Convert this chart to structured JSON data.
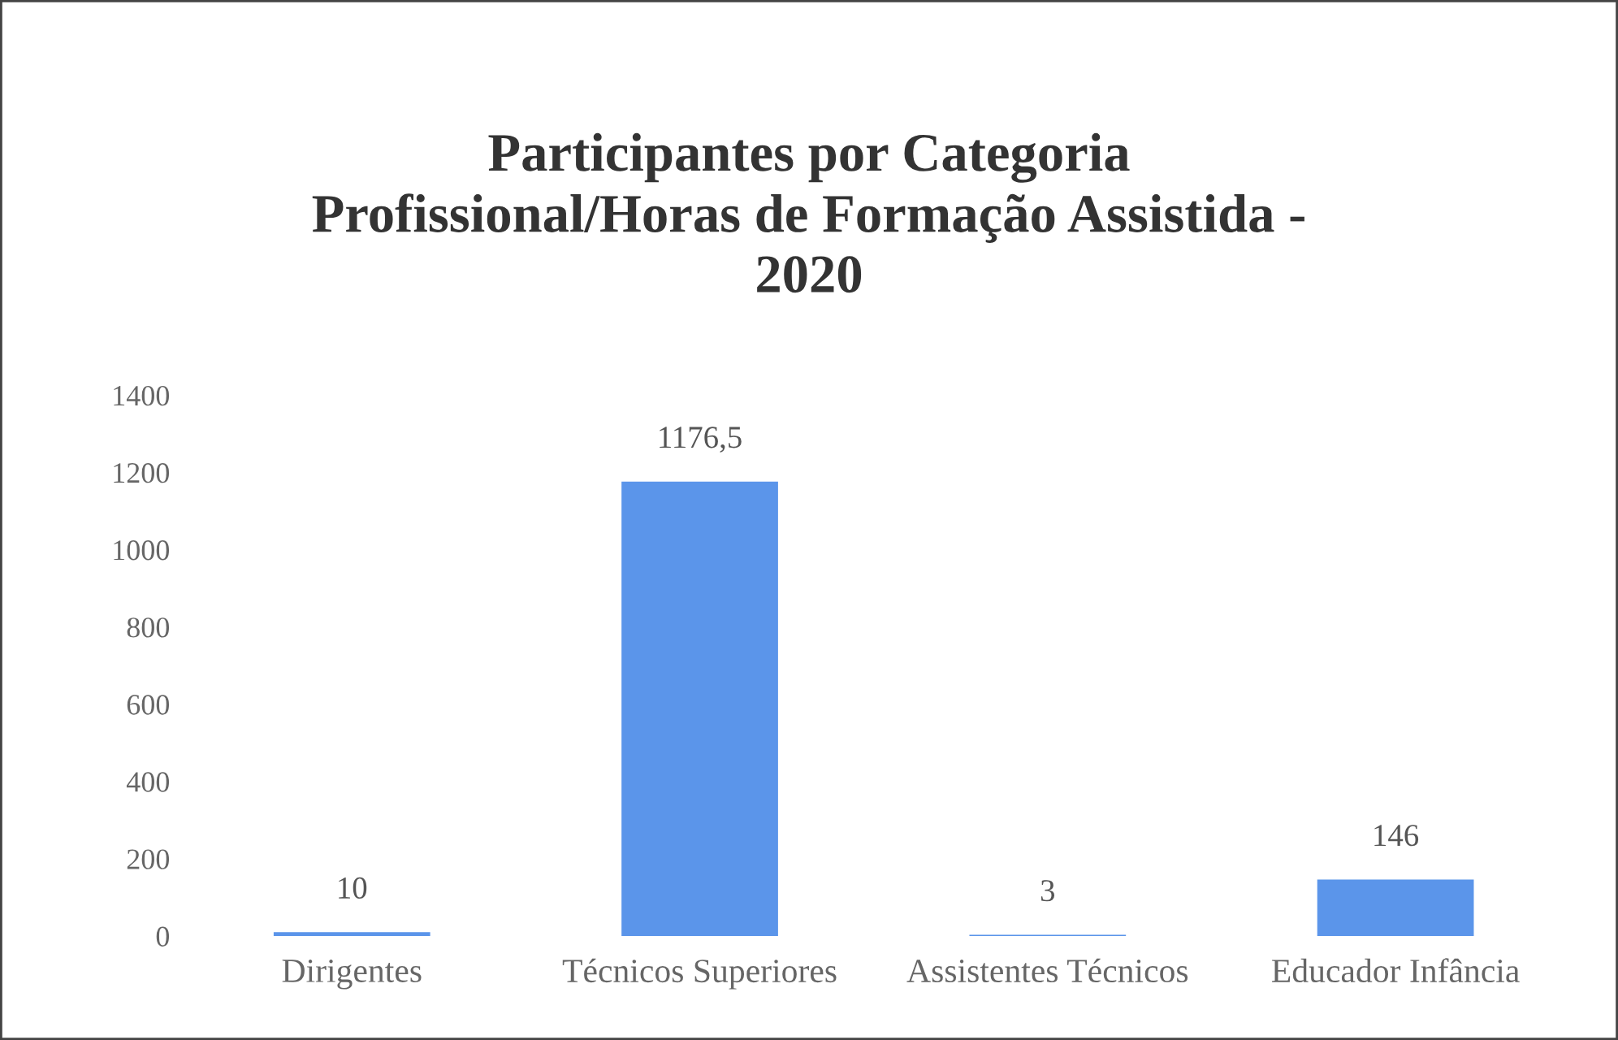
{
  "chart_data": {
    "type": "bar",
    "title": "Participantes por Categoria\nProfissional/Horas de Formação Assistida -\n2020",
    "categories": [
      "Dirigentes",
      "Técnicos Superiores",
      "Assistentes Técnicos",
      "Educador Infância"
    ],
    "values": [
      10,
      1176.5,
      3,
      146
    ],
    "value_labels": [
      "10",
      "1176,5",
      "3",
      "146"
    ],
    "color": "#5b95ea",
    "ylim": [
      0,
      1400
    ],
    "yticks": [
      0,
      200,
      400,
      600,
      800,
      1000,
      1200,
      1400
    ],
    "grid": false
  }
}
